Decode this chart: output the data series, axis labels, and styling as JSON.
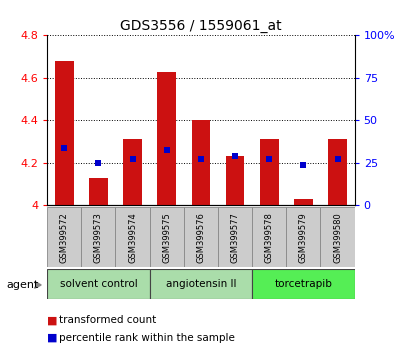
{
  "title": "GDS3556 / 1559061_at",
  "samples": [
    "GSM399572",
    "GSM399573",
    "GSM399574",
    "GSM399575",
    "GSM399576",
    "GSM399577",
    "GSM399578",
    "GSM399579",
    "GSM399580"
  ],
  "bar_values": [
    4.68,
    4.13,
    4.31,
    4.63,
    4.4,
    4.23,
    4.31,
    4.03,
    4.31
  ],
  "percentile_values": [
    4.27,
    4.2,
    4.22,
    4.26,
    4.22,
    4.23,
    4.22,
    4.19,
    4.22
  ],
  "bar_base": 4.0,
  "ylim_left": [
    4.0,
    4.8
  ],
  "ylim_right": [
    0,
    100
  ],
  "yticks_left": [
    4.0,
    4.2,
    4.4,
    4.6,
    4.8
  ],
  "yticks_right": [
    0,
    25,
    50,
    75,
    100
  ],
  "ytick_labels_right": [
    "0",
    "25",
    "50",
    "75",
    "100%"
  ],
  "ytick_labels_left": [
    "4",
    "4.2",
    "4.4",
    "4.6",
    "4.8"
  ],
  "bar_color": "#cc1111",
  "marker_color": "#0000cc",
  "groups": [
    {
      "label": "solvent control",
      "indices": [
        0,
        1,
        2
      ],
      "color": "#aaddaa"
    },
    {
      "label": "angiotensin II",
      "indices": [
        3,
        4,
        5
      ],
      "color": "#aaddaa"
    },
    {
      "label": "torcetrapib",
      "indices": [
        6,
        7,
        8
      ],
      "color": "#55ee55"
    }
  ],
  "group_bg_color": "#cccccc",
  "bar_width": 0.55,
  "agent_label": "agent",
  "grid_color": "#555555"
}
